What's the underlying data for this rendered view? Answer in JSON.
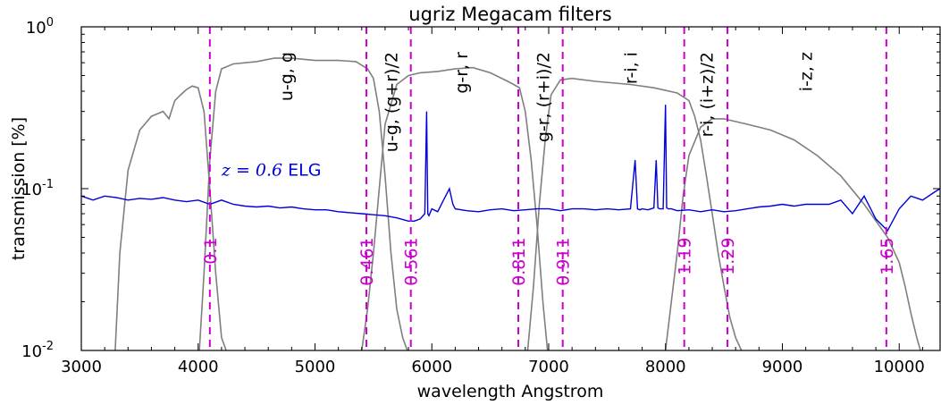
{
  "chart_data": {
    "type": "line",
    "title": "ugriz Megacam filters",
    "xlabel": "wavelength Angstrom",
    "ylabel": "transmission [%]",
    "xlim": [
      3000,
      10350
    ],
    "ylog": true,
    "ylim": [
      0.01,
      1.0
    ],
    "x_ticks": [
      3000,
      4000,
      5000,
      6000,
      7000,
      8000,
      9000,
      10000
    ],
    "y_ticks": [
      {
        "value": 0.01,
        "base": "10",
        "exp": "-2"
      },
      {
        "value": 0.1,
        "base": "10",
        "exp": "-1"
      },
      {
        "value": 1.0,
        "base": "10",
        "exp": "0"
      }
    ],
    "grid": false,
    "colors": {
      "filters": "#7f7f7f",
      "spectrum": "#0000dd",
      "vlines": "#cc00cc"
    },
    "spectrum_label": {
      "math": "z",
      "mid": " = ",
      "value": "0.6",
      "text": " ELG",
      "x": 4200,
      "y": 0.12
    },
    "filters": [
      {
        "name": "u",
        "x": [
          3290,
          3330,
          3400,
          3500,
          3600,
          3700,
          3750,
          3800,
          3850,
          3900,
          3950,
          4000,
          4050,
          4100,
          4150,
          4200,
          4240
        ],
        "y": [
          0.01,
          0.04,
          0.13,
          0.23,
          0.28,
          0.3,
          0.27,
          0.35,
          0.38,
          0.41,
          0.43,
          0.42,
          0.3,
          0.1,
          0.03,
          0.012,
          0.01
        ]
      },
      {
        "name": "g",
        "x": [
          4010,
          4050,
          4100,
          4150,
          4200,
          4300,
          4500,
          4650,
          4800,
          5000,
          5200,
          5350,
          5450,
          5500,
          5550,
          5600,
          5650,
          5700,
          5750,
          5790
        ],
        "y": [
          0.01,
          0.03,
          0.15,
          0.4,
          0.55,
          0.59,
          0.61,
          0.64,
          0.64,
          0.62,
          0.62,
          0.61,
          0.55,
          0.48,
          0.3,
          0.12,
          0.04,
          0.018,
          0.012,
          0.01
        ]
      },
      {
        "name": "r",
        "x": [
          5400,
          5450,
          5500,
          5550,
          5600,
          5700,
          5800,
          5900,
          6050,
          6200,
          6350,
          6500,
          6650,
          6700,
          6750,
          6800,
          6850,
          6900,
          6950,
          6990
        ],
        "y": [
          0.01,
          0.018,
          0.04,
          0.1,
          0.25,
          0.44,
          0.5,
          0.52,
          0.53,
          0.55,
          0.56,
          0.52,
          0.46,
          0.44,
          0.42,
          0.3,
          0.15,
          0.06,
          0.02,
          0.01
        ]
      },
      {
        "name": "i",
        "x": [
          6820,
          6870,
          6920,
          6970,
          7020,
          7100,
          7200,
          7400,
          7700,
          7900,
          8100,
          8200,
          8250,
          8300,
          8350,
          8400,
          8450,
          8500,
          8550,
          8600,
          8650,
          8700
        ],
        "y": [
          0.01,
          0.025,
          0.08,
          0.2,
          0.38,
          0.47,
          0.48,
          0.46,
          0.44,
          0.42,
          0.39,
          0.35,
          0.28,
          0.2,
          0.12,
          0.07,
          0.04,
          0.025,
          0.016,
          0.012,
          0.01,
          0.009
        ]
      },
      {
        "name": "z",
        "x": [
          8000,
          8100,
          8150,
          8200,
          8300,
          8400,
          8500,
          8700,
          8900,
          9100,
          9300,
          9500,
          9700,
          9900,
          10000,
          10050,
          10100,
          10150,
          10200
        ],
        "y": [
          0.01,
          0.04,
          0.09,
          0.16,
          0.24,
          0.27,
          0.27,
          0.25,
          0.23,
          0.2,
          0.16,
          0.12,
          0.08,
          0.05,
          0.035,
          0.025,
          0.017,
          0.012,
          0.009
        ]
      }
    ],
    "spectrum": {
      "x": [
        3000,
        3100,
        3200,
        3300,
        3400,
        3500,
        3600,
        3700,
        3800,
        3900,
        4000,
        4100,
        4200,
        4300,
        4400,
        4500,
        4600,
        4700,
        4800,
        4900,
        5000,
        5100,
        5200,
        5300,
        5400,
        5500,
        5600,
        5700,
        5800,
        5850,
        5900,
        5940,
        5955,
        5965,
        5975,
        6000,
        6050,
        6100,
        6150,
        6180,
        6200,
        6300,
        6400,
        6500,
        6600,
        6700,
        6800,
        6900,
        7000,
        7100,
        7200,
        7300,
        7400,
        7500,
        7600,
        7700,
        7740,
        7760,
        7780,
        7800,
        7850,
        7900,
        7920,
        7935,
        7950,
        7980,
        8000,
        8010,
        8025,
        8050,
        8100,
        8200,
        8300,
        8400,
        8500,
        8600,
        8700,
        8800,
        8900,
        9000,
        9100,
        9200,
        9300,
        9400,
        9500,
        9600,
        9700,
        9800,
        9900,
        10000,
        10100,
        10200,
        10300,
        10350
      ],
      "y": [
        0.09,
        0.085,
        0.09,
        0.088,
        0.085,
        0.087,
        0.086,
        0.088,
        0.085,
        0.083,
        0.085,
        0.08,
        0.085,
        0.08,
        0.078,
        0.077,
        0.078,
        0.076,
        0.077,
        0.075,
        0.074,
        0.074,
        0.072,
        0.071,
        0.07,
        0.069,
        0.068,
        0.066,
        0.063,
        0.063,
        0.065,
        0.07,
        0.3,
        0.07,
        0.068,
        0.075,
        0.072,
        0.085,
        0.1,
        0.08,
        0.075,
        0.073,
        0.072,
        0.074,
        0.075,
        0.073,
        0.074,
        0.075,
        0.075,
        0.073,
        0.075,
        0.075,
        0.074,
        0.075,
        0.074,
        0.075,
        0.15,
        0.075,
        0.074,
        0.075,
        0.074,
        0.076,
        0.15,
        0.076,
        0.075,
        0.075,
        0.33,
        0.076,
        0.075,
        0.075,
        0.073,
        0.074,
        0.072,
        0.074,
        0.072,
        0.073,
        0.075,
        0.077,
        0.078,
        0.08,
        0.078,
        0.08,
        0.08,
        0.08,
        0.085,
        0.07,
        0.09,
        0.065,
        0.055,
        0.075,
        0.09,
        0.085,
        0.095,
        0.1
      ]
    },
    "vlines": [
      {
        "x": 4100,
        "label": "0.1"
      },
      {
        "x": 5440,
        "label": "0.461"
      },
      {
        "x": 5820,
        "label": "0.561"
      },
      {
        "x": 6740,
        "label": "0.811"
      },
      {
        "x": 7120,
        "label": "0.911"
      },
      {
        "x": 8160,
        "label": "1.19"
      },
      {
        "x": 8530,
        "label": "1.29"
      },
      {
        "x": 9890,
        "label": "1.65"
      }
    ],
    "band_labels": [
      {
        "text": "u-g, g",
        "x": 4750,
        "y": 0.7
      },
      {
        "text": "u-g, (g+r)/2",
        "x": 5650,
        "y": 0.7
      },
      {
        "text": "g-r, r",
        "x": 6250,
        "y": 0.7
      },
      {
        "text": "g-r, (r+i)/2",
        "x": 6950,
        "y": 0.7
      },
      {
        "text": "r-i, i",
        "x": 7700,
        "y": 0.7
      },
      {
        "text": "r-i, (i+z)/2",
        "x": 8350,
        "y": 0.7
      },
      {
        "text": "i-z, z",
        "x": 9200,
        "y": 0.7
      }
    ]
  }
}
